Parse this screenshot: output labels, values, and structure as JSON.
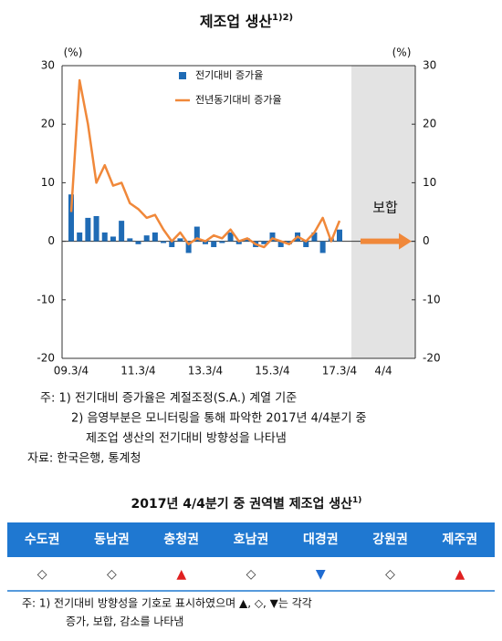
{
  "chart_data": {
    "type": "combo",
    "title": "제조업 생산",
    "title_sup": "1)2)",
    "y_unit_left": "(%)",
    "y_unit_right": "(%)",
    "categories": [
      "09.3/4",
      null,
      null,
      null,
      null,
      null,
      null,
      null,
      "11.3/4",
      null,
      null,
      null,
      null,
      null,
      null,
      null,
      "13.3/4",
      null,
      null,
      null,
      null,
      null,
      null,
      null,
      "15.3/4",
      null,
      null,
      null,
      null,
      null,
      null,
      null,
      "17.3/4",
      "4/4"
    ],
    "series": [
      {
        "name": "전기대비 증가율",
        "color": "#1f6bb5",
        "kind": "bar",
        "values": [
          8,
          1.5,
          4,
          4.3,
          1.5,
          0.8,
          3.5,
          0.5,
          -0.5,
          1,
          1.5,
          -0.3,
          -1,
          0.5,
          -2,
          2.5,
          -0.5,
          -1,
          -0.3,
          1.5,
          -0.5,
          0.5,
          -1,
          -0.5,
          1.5,
          -1,
          -0.5,
          1.5,
          -1,
          1.5,
          -2,
          0.5,
          2,
          null
        ]
      },
      {
        "name": "전년동기대비 증가율",
        "color": "#f0883a",
        "kind": "line",
        "values": [
          5,
          27.5,
          20,
          10,
          13,
          9.5,
          10,
          6.5,
          5.5,
          4,
          4.5,
          2,
          0,
          1.5,
          -0.5,
          0.5,
          0,
          1,
          0.5,
          2,
          0,
          0.5,
          -0.5,
          -1,
          0.5,
          0,
          -0.5,
          0.8,
          0,
          1.5,
          4,
          0,
          3.5,
          null
        ]
      }
    ],
    "ylim": [
      -20,
      30
    ],
    "yticks": [
      -20,
      -10,
      0,
      10,
      20,
      30
    ],
    "y2lim": [
      -20,
      30
    ],
    "y2ticks": [
      -20,
      -10,
      0,
      10,
      20,
      30
    ],
    "annotation": "보합"
  },
  "notes": {
    "lines": [
      "주: 1) 전기대비 증가율은 계절조정(S.A.) 계열 기준",
      "2) 음영부분은 모니터링을 통해 파악한 2017년 4/4분기 중",
      "제조업 생산의 전기대비 방향성을 나타냄",
      "자료: 한국은행, 통계청"
    ]
  },
  "table": {
    "title": "2017년 4/4분기 중 권역별 제조업 생산",
    "title_sup": "1)",
    "header": [
      "수도권",
      "동남권",
      "충청권",
      "호남권",
      "대경권",
      "강원권",
      "제주권"
    ],
    "row": [
      "◇",
      "◇",
      "▲",
      "◇",
      "▼",
      "◇",
      "▲"
    ],
    "footnote": [
      "주: 1) 전기대비 방향성을 기호로 표시하였으며 ▲, ◇, ▼는 각각",
      "증가, 보합, 감소를 나타냄"
    ]
  }
}
